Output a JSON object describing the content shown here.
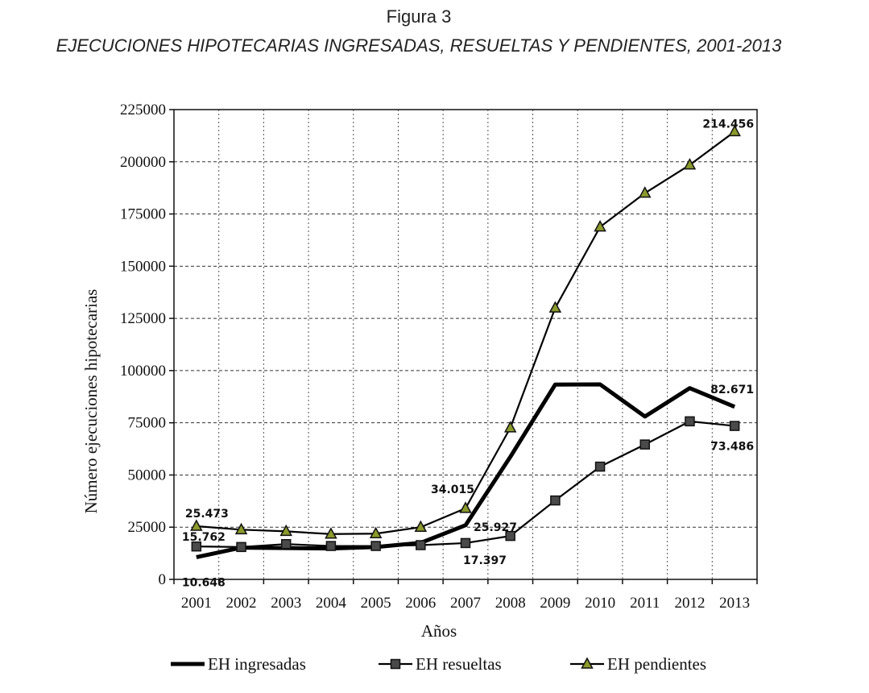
{
  "figure": {
    "number": "Figura 3",
    "title": "EJECUCIONES HIPOTECARIAS INGRESADAS, RESUELTAS Y PENDIENTES, 2001-2013"
  },
  "chart_data": {
    "type": "line",
    "title": "EJECUCIONES HIPOTECARIAS INGRESADAS, RESUELTAS Y PENDIENTES, 2001-2013",
    "xlabel": "Años",
    "ylabel": "Número ejecuciones hipotecarias",
    "categories": [
      "2001",
      "2002",
      "2003",
      "2004",
      "2005",
      "2006",
      "2007",
      "2008",
      "2009",
      "2010",
      "2011",
      "2012",
      "2013"
    ],
    "ylim": [
      0,
      225000
    ],
    "yticks": [
      "0",
      "25000",
      "50000",
      "75000",
      "100000",
      "125000",
      "150000",
      "175000",
      "200000",
      "225000"
    ],
    "grid": true,
    "legend_position": "bottom",
    "series": [
      {
        "name": "EH ingresadas",
        "style": "thick",
        "marker": "none",
        "values": [
          10648,
          15200,
          15000,
          14800,
          15500,
          17500,
          25927,
          58700,
          93300,
          93400,
          78000,
          91600,
          82671
        ]
      },
      {
        "name": "EH resueltas",
        "style": "thin",
        "marker": "square",
        "values": [
          15762,
          15500,
          16900,
          16000,
          16000,
          16400,
          17397,
          20800,
          37800,
          54000,
          64600,
          75700,
          73486
        ]
      },
      {
        "name": "EH pendientes",
        "style": "thin",
        "marker": "triangle",
        "values": [
          25473,
          23800,
          23000,
          21700,
          21900,
          25000,
          34015,
          72600,
          130000,
          168800,
          185000,
          198500,
          214456
        ]
      }
    ],
    "annotations": [
      {
        "series": "EH ingresadas",
        "index": 0,
        "text": "10.648"
      },
      {
        "series": "EH resueltas",
        "index": 0,
        "text": "15.762"
      },
      {
        "series": "EH pendientes",
        "index": 0,
        "text": "25.473"
      },
      {
        "series": "EH pendientes",
        "index": 6,
        "text": "34.015"
      },
      {
        "series": "EH ingresadas",
        "index": 6,
        "text": "25.927"
      },
      {
        "series": "EH resueltas",
        "index": 6,
        "text": "17.397"
      },
      {
        "series": "EH pendientes",
        "index": 12,
        "text": "214.456"
      },
      {
        "series": "EH ingresadas",
        "index": 12,
        "text": "82.671"
      },
      {
        "series": "EH resueltas",
        "index": 12,
        "text": "73.486"
      }
    ]
  }
}
